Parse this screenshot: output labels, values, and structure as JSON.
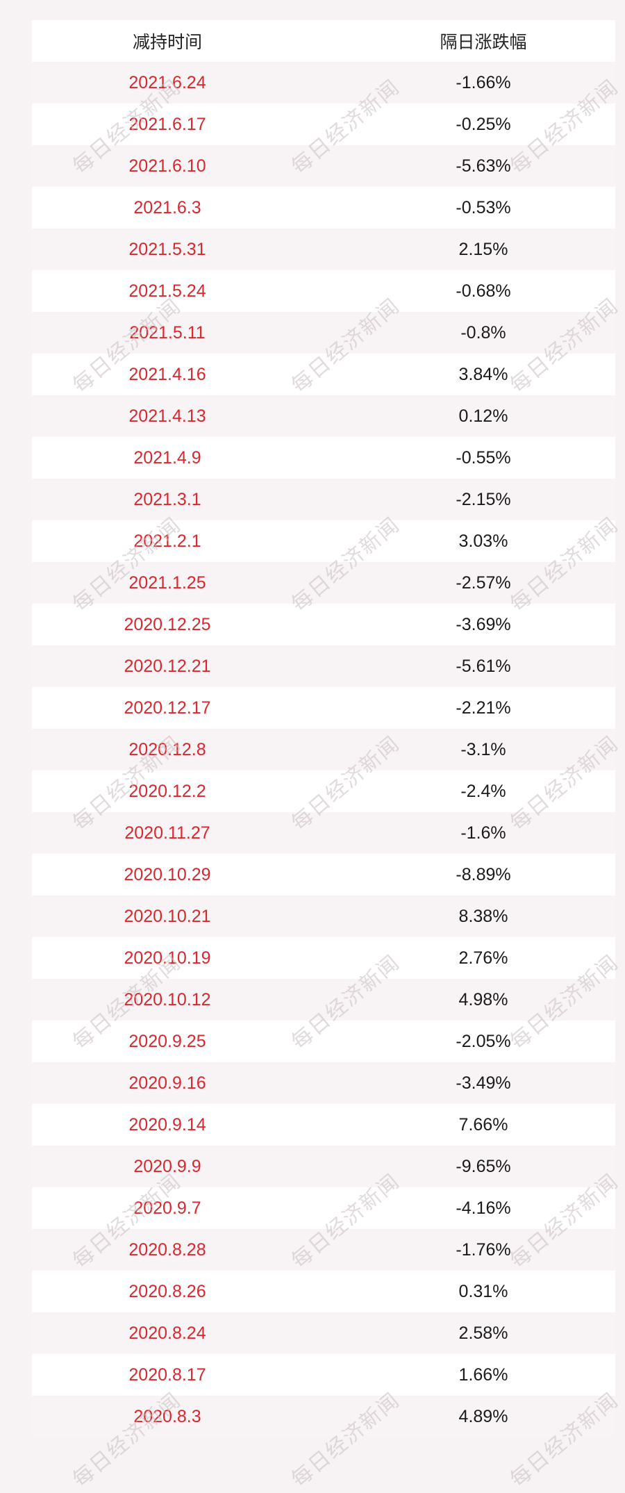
{
  "table": {
    "headers": [
      "减持时间",
      "隔日涨跌幅"
    ],
    "rows": [
      [
        "2021.6.24",
        "-1.66%"
      ],
      [
        "2021.6.17",
        "-0.25%"
      ],
      [
        "2021.6.10",
        "-5.63%"
      ],
      [
        "2021.6.3",
        "-0.53%"
      ],
      [
        "2021.5.31",
        "2.15%"
      ],
      [
        "2021.5.24",
        "-0.68%"
      ],
      [
        "2021.5.11",
        "-0.8%"
      ],
      [
        "2021.4.16",
        "3.84%"
      ],
      [
        "2021.4.13",
        "0.12%"
      ],
      [
        "2021.4.9",
        "-0.55%"
      ],
      [
        "2021.3.1",
        "-2.15%"
      ],
      [
        "2021.2.1",
        "3.03%"
      ],
      [
        "2021.1.25",
        "-2.57%"
      ],
      [
        "2020.12.25",
        "-3.69%"
      ],
      [
        "2020.12.21",
        "-5.61%"
      ],
      [
        "2020.12.17",
        "-2.21%"
      ],
      [
        "2020.12.8",
        "-3.1%"
      ],
      [
        "2020.12.2",
        "-2.4%"
      ],
      [
        "2020.11.27",
        "-1.6%"
      ],
      [
        "2020.10.29",
        "-8.89%"
      ],
      [
        "2020.10.21",
        "8.38%"
      ],
      [
        "2020.10.19",
        "2.76%"
      ],
      [
        "2020.10.12",
        "4.98%"
      ],
      [
        "2020.9.25",
        "-2.05%"
      ],
      [
        "2020.9.16",
        "-3.49%"
      ],
      [
        "2020.9.14",
        "7.66%"
      ],
      [
        "2020.9.9",
        "-9.65%"
      ],
      [
        "2020.9.7",
        "-4.16%"
      ],
      [
        "2020.8.28",
        "-1.76%"
      ],
      [
        "2020.8.26",
        "0.31%"
      ],
      [
        "2020.8.24",
        "2.58%"
      ],
      [
        "2020.8.17",
        "1.66%"
      ],
      [
        "2020.8.3",
        "4.89%"
      ]
    ]
  },
  "watermark": "每日经济新闻",
  "colors": {
    "date_text": "#d9272e",
    "value_text": "#1a1a1a",
    "row_light": "#ffffff",
    "row_tint": "#f8f4f5"
  }
}
